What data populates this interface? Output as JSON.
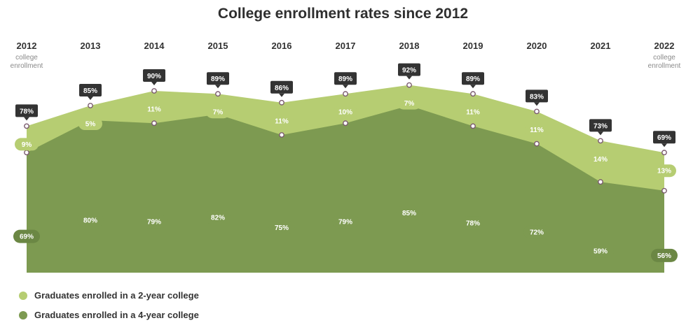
{
  "chart_data": {
    "type": "area",
    "title": "College enrollment rates since 2012",
    "x": [
      "2012",
      "2013",
      "2014",
      "2015",
      "2016",
      "2017",
      "2018",
      "2019",
      "2020",
      "2021",
      "2022"
    ],
    "x_sublabel_first": "college enrollment",
    "x_sublabel_last": "college enrollment",
    "series": [
      {
        "name": "Graduates enrolled in a 4-year college",
        "values": [
          69,
          80,
          79,
          82,
          75,
          79,
          85,
          78,
          72,
          59,
          56
        ]
      },
      {
        "name": "Graduates enrolled in a 2-year college",
        "values": [
          9,
          5,
          11,
          7,
          11,
          10,
          7,
          11,
          11,
          14,
          13
        ]
      }
    ],
    "totals": [
      78,
      85,
      91,
      89,
      86,
      89,
      92,
      89,
      82,
      73,
      69
    ],
    "value_suffix": "%",
    "stacked": true,
    "legend_position": "bottom-left",
    "colors": {
      "four_year": "#7d9a51",
      "two_year": "#b6cd72",
      "label_dark": "#333333",
      "point_ring": "#7a5a6e"
    }
  }
}
